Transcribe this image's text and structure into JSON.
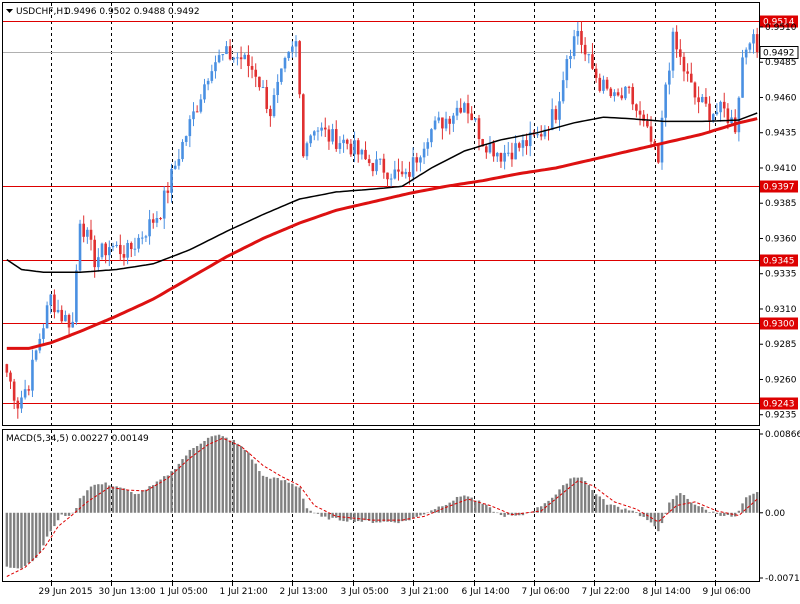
{
  "header": {
    "symbol": "USDCHF,H1",
    "ohlc": "0.9496 0.9502 0.9488 0.9492"
  },
  "colors": {
    "background": "#ffffff",
    "frame": "#000000",
    "grid": "#000000",
    "bull": "#4a90e2",
    "bear": "#e03030",
    "ma_fast": "#000000",
    "ma_slow": "#dd1111",
    "hline": "#dd0000",
    "bid_line": "#b0b0b0",
    "macd_hist": "#808080",
    "macd_signal": "#dd0000"
  },
  "chart_data": [
    {
      "type": "candlestick",
      "instrument": "USDCHF",
      "timeframe": "H1",
      "ylim": [
        0.9227,
        0.9527
      ],
      "price_ticks": [
        "0.9510",
        "0.9485",
        "0.9460",
        "0.9435",
        "0.9410",
        "0.9385",
        "0.9360",
        "0.9335",
        "0.9310",
        "0.9285",
        "0.9260",
        "0.9235"
      ],
      "price_tick_values": [
        0.951,
        0.9485,
        0.946,
        0.9435,
        0.941,
        0.9385,
        0.936,
        0.9335,
        0.931,
        0.9285,
        0.926,
        0.9235
      ],
      "time_labels": [
        "29 Jun 2015",
        "30 Jun 13:00",
        "1 Jul 05:00",
        "1 Jul 21:00",
        "2 Jul 13:00",
        "3 Jul 05:00",
        "3 Jul 21:00",
        "6 Jul 14:00",
        "7 Jul 06:00",
        "7 Jul 22:00",
        "8 Jul 14:00",
        "9 Jul 06:00"
      ],
      "horizontal_levels": [
        {
          "label": "0.9514",
          "value": 0.9514
        },
        {
          "label": "0.9397",
          "value": 0.9397
        },
        {
          "label": "0.9345",
          "value": 0.9345
        },
        {
          "label": "0.9300",
          "value": 0.93
        },
        {
          "label": "0.9243",
          "value": 0.9243
        }
      ],
      "bid": {
        "label": "0.9492",
        "value": 0.9492
      },
      "price_anchors": [
        [
          0,
          0.9265
        ],
        [
          3,
          0.9243
        ],
        [
          6,
          0.9258
        ],
        [
          9,
          0.929
        ],
        [
          12,
          0.9318
        ],
        [
          15,
          0.9305
        ],
        [
          18,
          0.93
        ],
        [
          20,
          0.9375
        ],
        [
          24,
          0.9345
        ],
        [
          28,
          0.9355
        ],
        [
          33,
          0.935
        ],
        [
          37,
          0.9363
        ],
        [
          42,
          0.938
        ],
        [
          47,
          0.942
        ],
        [
          52,
          0.9455
        ],
        [
          56,
          0.9485
        ],
        [
          60,
          0.949
        ],
        [
          64,
          0.9488
        ],
        [
          68,
          0.9478
        ],
        [
          72,
          0.945
        ],
        [
          76,
          0.9482
        ],
        [
          79,
          0.9498
        ],
        [
          81,
          0.9425
        ],
        [
          84,
          0.944
        ],
        [
          88,
          0.9432
        ],
        [
          93,
          0.9428
        ],
        [
          98,
          0.9415
        ],
        [
          103,
          0.941
        ],
        [
          109,
          0.9402
        ],
        [
          115,
          0.9435
        ],
        [
          120,
          0.9445
        ],
        [
          125,
          0.9458
        ],
        [
          130,
          0.943
        ],
        [
          135,
          0.942
        ],
        [
          140,
          0.9425
        ],
        [
          145,
          0.9432
        ],
        [
          150,
          0.945
        ],
        [
          153,
          0.949
        ],
        [
          156,
          0.9508
        ],
        [
          158,
          0.949
        ],
        [
          162,
          0.947
        ],
        [
          166,
          0.9458
        ],
        [
          170,
          0.9462
        ],
        [
          173,
          0.9445
        ],
        [
          176,
          0.9428
        ],
        [
          178,
          0.9412
        ],
        [
          180,
          0.947
        ],
        [
          182,
          0.95
        ],
        [
          185,
          0.948
        ],
        [
          188,
          0.946
        ],
        [
          192,
          0.945
        ],
        [
          196,
          0.945
        ],
        [
          199,
          0.944
        ],
        [
          201,
          0.9488
        ],
        [
          203,
          0.9505
        ],
        [
          205,
          0.9492
        ]
      ],
      "sma_fast_anchors": [
        [
          0,
          0.9345
        ],
        [
          4,
          0.9338
        ],
        [
          10,
          0.9336
        ],
        [
          20,
          0.9336
        ],
        [
          30,
          0.9338
        ],
        [
          40,
          0.9342
        ],
        [
          50,
          0.9352
        ],
        [
          60,
          0.9365
        ],
        [
          70,
          0.9377
        ],
        [
          80,
          0.9388
        ],
        [
          90,
          0.9393
        ],
        [
          100,
          0.9395
        ],
        [
          108,
          0.9397
        ],
        [
          116,
          0.941
        ],
        [
          125,
          0.9422
        ],
        [
          135,
          0.943
        ],
        [
          145,
          0.9435
        ],
        [
          155,
          0.9442
        ],
        [
          163,
          0.9446
        ],
        [
          170,
          0.9445
        ],
        [
          180,
          0.9443
        ],
        [
          190,
          0.9443
        ],
        [
          200,
          0.9444
        ],
        [
          205,
          0.9449
        ]
      ],
      "sma_slow_anchors": [
        [
          0,
          0.9282
        ],
        [
          6,
          0.9282
        ],
        [
          12,
          0.9286
        ],
        [
          20,
          0.9294
        ],
        [
          30,
          0.9305
        ],
        [
          40,
          0.9317
        ],
        [
          50,
          0.9332
        ],
        [
          60,
          0.9347
        ],
        [
          70,
          0.936
        ],
        [
          80,
          0.9371
        ],
        [
          90,
          0.938
        ],
        [
          100,
          0.9386
        ],
        [
          110,
          0.9392
        ],
        [
          120,
          0.9397
        ],
        [
          130,
          0.9401
        ],
        [
          140,
          0.9406
        ],
        [
          150,
          0.941
        ],
        [
          160,
          0.9416
        ],
        [
          170,
          0.9422
        ],
        [
          180,
          0.9428
        ],
        [
          190,
          0.9434
        ],
        [
          200,
          0.9442
        ],
        [
          205,
          0.9445
        ]
      ]
    },
    {
      "type": "bar",
      "indicator": "MACD(5,34,5)",
      "macd_value": "0.00227",
      "signal_value": "0.00149",
      "ylim": [
        -0.0075,
        0.0091
      ],
      "ticks": [
        "0.00866",
        "0.00",
        "-0.00717"
      ],
      "tick_values": [
        0.00866,
        0.0,
        -0.00717
      ],
      "macd_anchors": [
        [
          0,
          -0.006
        ],
        [
          4,
          -0.006
        ],
        [
          8,
          -0.005
        ],
        [
          12,
          -0.002
        ],
        [
          15,
          -0.0003
        ],
        [
          18,
          -0.0002
        ],
        [
          20,
          0.0015
        ],
        [
          23,
          0.003
        ],
        [
          27,
          0.0032
        ],
        [
          31,
          0.0028
        ],
        [
          35,
          0.002
        ],
        [
          40,
          0.003
        ],
        [
          45,
          0.0045
        ],
        [
          50,
          0.0068
        ],
        [
          55,
          0.0083
        ],
        [
          58,
          0.0085
        ],
        [
          62,
          0.0079
        ],
        [
          66,
          0.0066
        ],
        [
          70,
          0.004
        ],
        [
          73,
          0.0038
        ],
        [
          76,
          0.0035
        ],
        [
          80,
          0.0028
        ],
        [
          82,
          0.0005
        ],
        [
          86,
          -0.0005
        ],
        [
          92,
          -0.0008
        ],
        [
          100,
          -0.001
        ],
        [
          108,
          -0.001
        ],
        [
          112,
          -0.0005
        ],
        [
          116,
          0.0003
        ],
        [
          120,
          0.001
        ],
        [
          125,
          0.002
        ],
        [
          130,
          0.001
        ],
        [
          135,
          -0.0003
        ],
        [
          140,
          -0.0004
        ],
        [
          145,
          0.0005
        ],
        [
          150,
          0.002
        ],
        [
          154,
          0.0038
        ],
        [
          157,
          0.004
        ],
        [
          160,
          0.0025
        ],
        [
          164,
          0.001
        ],
        [
          168,
          0.0005
        ],
        [
          171,
          0.0003
        ],
        [
          175,
          -0.0008
        ],
        [
          178,
          -0.002
        ],
        [
          181,
          0.001
        ],
        [
          184,
          0.0022
        ],
        [
          187,
          0.0012
        ],
        [
          191,
          0.0003
        ],
        [
          195,
          -0.0002
        ],
        [
          199,
          -0.0005
        ],
        [
          202,
          0.0016
        ],
        [
          205,
          0.0022
        ]
      ],
      "signal_anchors": [
        [
          0,
          -0.007
        ],
        [
          5,
          -0.006
        ],
        [
          10,
          -0.004
        ],
        [
          14,
          -0.0015
        ],
        [
          18,
          -0.0002
        ],
        [
          22,
          0.0012
        ],
        [
          28,
          0.0028
        ],
        [
          33,
          0.0025
        ],
        [
          38,
          0.0024
        ],
        [
          44,
          0.0038
        ],
        [
          50,
          0.006
        ],
        [
          55,
          0.0075
        ],
        [
          59,
          0.0082
        ],
        [
          64,
          0.0073
        ],
        [
          70,
          0.0052
        ],
        [
          75,
          0.004
        ],
        [
          80,
          0.003
        ],
        [
          84,
          0.0008
        ],
        [
          90,
          -0.0004
        ],
        [
          100,
          -0.0008
        ],
        [
          108,
          -0.0008
        ],
        [
          114,
          -0.0004
        ],
        [
          120,
          0.0006
        ],
        [
          126,
          0.0015
        ],
        [
          132,
          0.0008
        ],
        [
          138,
          -0.0002
        ],
        [
          146,
          0.0002
        ],
        [
          152,
          0.0022
        ],
        [
          156,
          0.0035
        ],
        [
          160,
          0.003
        ],
        [
          166,
          0.0012
        ],
        [
          172,
          0.0004
        ],
        [
          178,
          -0.001
        ],
        [
          183,
          0.0008
        ],
        [
          188,
          0.0012
        ],
        [
          194,
          0.0002
        ],
        [
          200,
          -0.0003
        ],
        [
          205,
          0.0015
        ]
      ]
    }
  ]
}
